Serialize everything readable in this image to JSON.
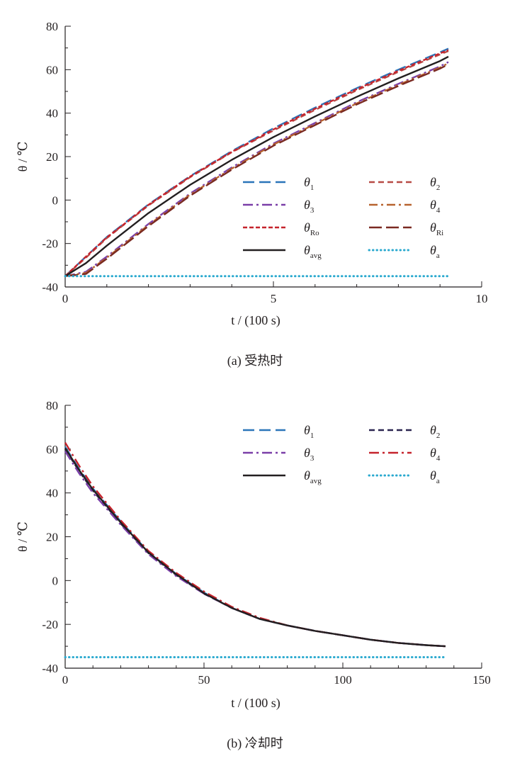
{
  "chart_data": [
    {
      "type": "line",
      "caption": "(a) 受热时",
      "xlabel": "t / (100 s)",
      "ylabel": "θ / ℃",
      "xlim": [
        0,
        10
      ],
      "ylim": [
        -40,
        80
      ],
      "xticks": [
        "0",
        "5",
        "10"
      ],
      "yticks": [
        "-40",
        "-20",
        "0",
        "20",
        "40",
        "60",
        "80"
      ],
      "grid": false,
      "legend_position": "bottom-right",
      "series": [
        {
          "name": "θ1",
          "base": "θ",
          "sub": "1",
          "color": "#2b75b9",
          "dash": "16,7",
          "x": [
            0,
            0.5,
            1,
            1.5,
            2,
            3,
            4,
            5,
            6,
            7,
            8,
            9,
            9.2
          ],
          "y": [
            -35,
            -26,
            -17,
            -9.5,
            -2,
            11,
            22.5,
            33,
            42.5,
            51.5,
            60,
            68,
            69.7
          ]
        },
        {
          "name": "θ2",
          "base": "θ",
          "sub": "2",
          "color": "#b84a45",
          "dash": "8,5",
          "x": [
            0,
            0.5,
            1,
            1.5,
            2,
            3,
            4,
            5,
            6,
            7,
            8,
            9,
            9.2
          ],
          "y": [
            -35,
            -26.5,
            -17.5,
            -10,
            -2.5,
            10.5,
            22,
            32,
            41.5,
            50.5,
            59,
            67,
            68.6
          ]
        },
        {
          "name": "θ3",
          "base": "θ",
          "sub": "3",
          "color": "#7a3fa8",
          "dash": "14,5,3,5",
          "x": [
            0,
            0.5,
            1,
            1.5,
            2,
            3,
            4,
            5,
            6,
            7,
            8,
            9,
            9.2
          ],
          "y": [
            -35,
            -33,
            -26,
            -18.5,
            -11,
            3,
            15,
            26,
            35.5,
            45,
            53.5,
            61.5,
            63.5
          ]
        },
        {
          "name": "θ4",
          "base": "θ",
          "sub": "4",
          "color": "#b7632f",
          "dash": "12,5,3,5",
          "x": [
            0,
            0.5,
            1,
            1.5,
            2,
            3,
            4,
            5,
            6,
            7,
            8,
            9,
            9.2
          ],
          "y": [
            -35,
            -33.5,
            -26.5,
            -19,
            -11.5,
            2.5,
            14.5,
            25.5,
            35,
            44.5,
            53,
            61,
            63
          ]
        },
        {
          "name": "θRo",
          "base": "θ",
          "sub": "Ro",
          "color": "#c5232c",
          "dash": "6,3",
          "x": [
            0,
            0.5,
            1,
            1.5,
            2,
            3,
            4,
            5,
            6,
            7,
            8,
            9,
            9.2
          ],
          "y": [
            -35,
            -26,
            -17.2,
            -9.8,
            -2.2,
            10.8,
            22.2,
            32.5,
            42,
            51,
            59.5,
            67.5,
            69
          ]
        },
        {
          "name": "θRi",
          "base": "θ",
          "sub": "Ri",
          "color": "#7a2a22",
          "dash": "18,6",
          "x": [
            0,
            0.5,
            1,
            1.5,
            2,
            3,
            4,
            5,
            6,
            7,
            8,
            9,
            9.2
          ],
          "y": [
            -35,
            -34,
            -27,
            -19.5,
            -12,
            2,
            14,
            25,
            34.5,
            44,
            52.5,
            60.5,
            62.5
          ]
        },
        {
          "name": "θavg",
          "base": "θ",
          "sub": "avg",
          "color": "#231f20",
          "dash": "",
          "x": [
            0,
            0.5,
            1,
            1.5,
            2,
            3,
            4,
            5,
            6,
            7,
            8,
            9,
            9.2
          ],
          "y": [
            -35,
            -29,
            -21,
            -13.5,
            -6,
            7,
            18.5,
            29,
            38.5,
            47.5,
            56,
            64,
            66
          ]
        },
        {
          "name": "θa",
          "base": "θ",
          "sub": "a",
          "color": "#2aa9cf",
          "dash": "2,4",
          "x": [
            0,
            1,
            2,
            3,
            4,
            5,
            6,
            7,
            8,
            9,
            9.2
          ],
          "y": [
            -35,
            -35,
            -35,
            -35,
            -35,
            -35,
            -35,
            -35,
            -35,
            -35,
            -35
          ]
        }
      ]
    },
    {
      "type": "line",
      "caption": "(b) 冷却时",
      "xlabel": "t / (100 s)",
      "ylabel": "θ / ℃",
      "xlim": [
        0,
        150
      ],
      "ylim": [
        -40,
        80
      ],
      "xticks": [
        "0",
        "50",
        "100",
        "150"
      ],
      "yticks": [
        "-40",
        "-20",
        "0",
        "20",
        "40",
        "60",
        "80"
      ],
      "grid": false,
      "legend_position": "top-right",
      "series": [
        {
          "name": "θ1",
          "base": "θ",
          "sub": "1",
          "color": "#2b75b9",
          "dash": "16,7",
          "x": [
            0,
            5,
            10,
            20,
            30,
            40,
            50,
            60,
            70,
            80,
            90,
            100,
            110,
            120,
            130,
            137
          ],
          "y": [
            61,
            51,
            42,
            27,
            13,
            3,
            -5.5,
            -12.5,
            -17.5,
            -20.5,
            -23,
            -25,
            -27,
            -28.5,
            -29.5,
            -30
          ]
        },
        {
          "name": "θ2",
          "base": "θ",
          "sub": "2",
          "color": "#2a2450",
          "dash": "8,5",
          "x": [
            0,
            5,
            10,
            20,
            30,
            40,
            50,
            60,
            70,
            80,
            90,
            100,
            110,
            120,
            130,
            137
          ],
          "y": [
            60,
            50,
            41,
            26,
            12.5,
            2.5,
            -6,
            -12.5,
            -17.5,
            -20.5,
            -23,
            -25,
            -27,
            -28.5,
            -29.5,
            -30
          ]
        },
        {
          "name": "θ3",
          "base": "θ",
          "sub": "3",
          "color": "#7a3fa8",
          "dash": "14,5,3,5",
          "x": [
            0,
            5,
            10,
            20,
            30,
            40,
            50,
            60,
            70,
            80,
            90,
            100,
            110,
            120,
            130,
            137
          ],
          "y": [
            59,
            49,
            40,
            25.5,
            12,
            2,
            -6,
            -12.5,
            -17.5,
            -20.5,
            -23,
            -25,
            -27,
            -28.5,
            -29.5,
            -30
          ]
        },
        {
          "name": "θ4",
          "base": "θ",
          "sub": "4",
          "color": "#c5232c",
          "dash": "14,5,3,5",
          "x": [
            0,
            5,
            10,
            20,
            30,
            40,
            50,
            60,
            70,
            80,
            90,
            100,
            110,
            120,
            130,
            137
          ],
          "y": [
            63,
            52.5,
            43,
            27.5,
            13.5,
            3.5,
            -5,
            -12,
            -17,
            -20.5,
            -23,
            -25,
            -27,
            -28.5,
            -29.5,
            -30
          ]
        },
        {
          "name": "θavg",
          "base": "θ",
          "sub": "avg",
          "color": "#231f20",
          "dash": "",
          "x": [
            0,
            5,
            10,
            20,
            30,
            40,
            50,
            60,
            70,
            80,
            90,
            100,
            110,
            120,
            130,
            137
          ],
          "y": [
            60.5,
            50.5,
            41.5,
            26.5,
            12.8,
            2.8,
            -5.8,
            -12.5,
            -17.5,
            -20.5,
            -23,
            -25,
            -27,
            -28.5,
            -29.5,
            -30
          ]
        },
        {
          "name": "θa",
          "base": "θ",
          "sub": "a",
          "color": "#2aa9cf",
          "dash": "2,4",
          "x": [
            0,
            20,
            40,
            60,
            80,
            100,
            120,
            137
          ],
          "y": [
            -35,
            -35,
            -35,
            -35,
            -35,
            -35,
            -35,
            -35
          ]
        }
      ]
    }
  ]
}
